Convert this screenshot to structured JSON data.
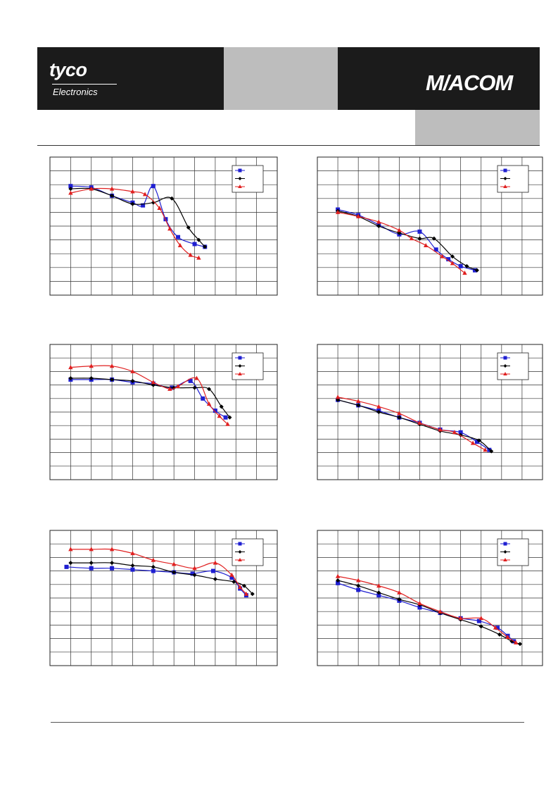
{
  "header": {
    "brand_left": "tyco",
    "brand_left_sub": "Electronics",
    "brand_right": "M/ACOM"
  },
  "colors": {
    "series1": "#1f1fd1",
    "series2": "#000000",
    "series3": "#e02020",
    "banner_dark": "#1b1b1b",
    "banner_grey": "#bdbdbd"
  },
  "chart_data": [
    {
      "type": "line",
      "xlim": [
        0,
        11
      ],
      "ylim": [
        0,
        10
      ],
      "grid": true,
      "legend": "top-right",
      "series": [
        {
          "marker": "square",
          "points": [
            [
              1,
              7.9
            ],
            [
              2,
              7.8
            ],
            [
              3,
              7.2
            ],
            [
              4,
              6.7
            ],
            [
              4.5,
              6.5
            ],
            [
              5,
              7.9
            ],
            [
              5.6,
              5.5
            ],
            [
              6.2,
              4.2
            ],
            [
              7,
              3.7
            ],
            [
              7.5,
              3.5
            ]
          ]
        },
        {
          "marker": "diamond",
          "points": [
            [
              1,
              7.7
            ],
            [
              2,
              7.7
            ],
            [
              3,
              7.2
            ],
            [
              4,
              6.6
            ],
            [
              5,
              6.7
            ],
            [
              5.9,
              7.0
            ],
            [
              6.7,
              4.9
            ],
            [
              7.2,
              4.0
            ],
            [
              7.5,
              3.5
            ]
          ]
        },
        {
          "marker": "triangle",
          "points": [
            [
              1,
              7.4
            ],
            [
              2,
              7.7
            ],
            [
              3,
              7.7
            ],
            [
              4,
              7.5
            ],
            [
              4.6,
              7.3
            ],
            [
              5.3,
              6.3
            ],
            [
              5.8,
              4.8
            ],
            [
              6.3,
              3.6
            ],
            [
              6.8,
              2.9
            ],
            [
              7.2,
              2.7
            ]
          ]
        }
      ]
    },
    {
      "type": "line",
      "xlim": [
        0,
        11
      ],
      "ylim": [
        0,
        10
      ],
      "grid": true,
      "legend": "top-right",
      "series": [
        {
          "marker": "square",
          "points": [
            [
              1,
              6.2
            ],
            [
              2,
              5.8
            ],
            [
              3,
              5.1
            ],
            [
              4,
              4.4
            ],
            [
              5,
              4.6
            ],
            [
              5.8,
              3.3
            ],
            [
              6.4,
              2.6
            ],
            [
              7,
              2.1
            ],
            [
              7.7,
              1.8
            ]
          ]
        },
        {
          "marker": "diamond",
          "points": [
            [
              1,
              6.1
            ],
            [
              2,
              5.7
            ],
            [
              3,
              5.0
            ],
            [
              4,
              4.5
            ],
            [
              5,
              4.1
            ],
            [
              5.7,
              4.1
            ],
            [
              6.6,
              2.8
            ],
            [
              7.3,
              2.1
            ],
            [
              7.8,
              1.8
            ]
          ]
        },
        {
          "marker": "triangle",
          "points": [
            [
              1,
              6.0
            ],
            [
              2,
              5.7
            ],
            [
              3,
              5.3
            ],
            [
              4,
              4.7
            ],
            [
              4.6,
              4.1
            ],
            [
              5.3,
              3.6
            ],
            [
              6.1,
              2.8
            ],
            [
              6.6,
              2.3
            ],
            [
              7.2,
              1.6
            ]
          ]
        }
      ]
    },
    {
      "type": "line",
      "xlim": [
        0,
        11
      ],
      "ylim": [
        0,
        10
      ],
      "grid": true,
      "legend": "top-right",
      "series": [
        {
          "marker": "square",
          "points": [
            [
              1,
              7.4
            ],
            [
              2,
              7.4
            ],
            [
              3,
              7.4
            ],
            [
              4,
              7.2
            ],
            [
              5,
              7.1
            ],
            [
              5.9,
              6.8
            ],
            [
              6.8,
              7.3
            ],
            [
              7.4,
              6.0
            ],
            [
              8,
              5.1
            ],
            [
              8.5,
              4.6
            ]
          ]
        },
        {
          "marker": "diamond",
          "points": [
            [
              1,
              7.5
            ],
            [
              2,
              7.5
            ],
            [
              3,
              7.4
            ],
            [
              4,
              7.3
            ],
            [
              5,
              7.0
            ],
            [
              6,
              6.8
            ],
            [
              7,
              6.8
            ],
            [
              7.7,
              6.7
            ],
            [
              8.3,
              5.4
            ],
            [
              8.7,
              4.6
            ]
          ]
        },
        {
          "marker": "triangle",
          "points": [
            [
              1,
              8.3
            ],
            [
              2,
              8.4
            ],
            [
              3,
              8.4
            ],
            [
              4,
              8.0
            ],
            [
              5,
              7.2
            ],
            [
              5.8,
              6.7
            ],
            [
              6.2,
              6.9
            ],
            [
              7.1,
              7.5
            ],
            [
              7.7,
              5.6
            ],
            [
              8.2,
              4.7
            ],
            [
              8.6,
              4.1
            ]
          ]
        }
      ]
    },
    {
      "type": "line",
      "xlim": [
        0,
        11
      ],
      "ylim": [
        0,
        10
      ],
      "grid": true,
      "legend": "top-right",
      "series": [
        {
          "marker": "square",
          "points": [
            [
              1,
              5.9
            ],
            [
              2,
              5.5
            ],
            [
              3,
              5.1
            ],
            [
              4,
              4.6
            ],
            [
              5,
              4.2
            ],
            [
              6,
              3.7
            ],
            [
              7,
              3.5
            ],
            [
              7.8,
              2.8
            ],
            [
              8.4,
              2.2
            ]
          ]
        },
        {
          "marker": "diamond",
          "points": [
            [
              1,
              5.9
            ],
            [
              2,
              5.5
            ],
            [
              3,
              5.0
            ],
            [
              4,
              4.6
            ],
            [
              5,
              4.1
            ],
            [
              6,
              3.6
            ],
            [
              7,
              3.3
            ],
            [
              7.9,
              2.9
            ],
            [
              8.5,
              2.1
            ]
          ]
        },
        {
          "marker": "triangle",
          "points": [
            [
              1,
              6.1
            ],
            [
              2,
              5.8
            ],
            [
              3,
              5.4
            ],
            [
              4,
              4.9
            ],
            [
              5,
              4.2
            ],
            [
              6,
              3.7
            ],
            [
              6.7,
              3.5
            ],
            [
              7.6,
              2.7
            ],
            [
              8.2,
              2.2
            ]
          ]
        }
      ]
    },
    {
      "type": "line",
      "xlim": [
        0,
        11
      ],
      "ylim": [
        0,
        10
      ],
      "grid": true,
      "legend": "top-right",
      "series": [
        {
          "marker": "square",
          "points": [
            [
              0.8,
              7.3
            ],
            [
              2,
              7.2
            ],
            [
              3,
              7.2
            ],
            [
              4,
              7.1
            ],
            [
              5,
              7.0
            ],
            [
              6,
              6.9
            ],
            [
              6.9,
              6.8
            ],
            [
              7.9,
              7.0
            ],
            [
              8.8,
              6.5
            ],
            [
              9.2,
              5.7
            ],
            [
              9.5,
              5.2
            ]
          ]
        },
        {
          "marker": "diamond",
          "points": [
            [
              1,
              7.6
            ],
            [
              2,
              7.6
            ],
            [
              3,
              7.6
            ],
            [
              4,
              7.4
            ],
            [
              5,
              7.3
            ],
            [
              6,
              6.9
            ],
            [
              7,
              6.7
            ],
            [
              8,
              6.4
            ],
            [
              8.9,
              6.2
            ],
            [
              9.4,
              5.9
            ],
            [
              9.8,
              5.3
            ]
          ]
        },
        {
          "marker": "triangle",
          "points": [
            [
              1,
              8.6
            ],
            [
              2,
              8.6
            ],
            [
              3,
              8.6
            ],
            [
              4,
              8.3
            ],
            [
              5,
              7.8
            ],
            [
              6,
              7.5
            ],
            [
              7,
              7.2
            ],
            [
              8,
              7.6
            ],
            [
              8.8,
              6.7
            ],
            [
              9.2,
              5.8
            ],
            [
              9.5,
              5.3
            ]
          ]
        }
      ]
    },
    {
      "type": "line",
      "xlim": [
        0,
        11
      ],
      "ylim": [
        0,
        10
      ],
      "grid": true,
      "legend": "top-right",
      "series": [
        {
          "marker": "square",
          "points": [
            [
              1,
              6.1
            ],
            [
              2,
              5.6
            ],
            [
              3,
              5.2
            ],
            [
              4,
              4.8
            ],
            [
              5,
              4.3
            ],
            [
              6,
              3.9
            ],
            [
              7,
              3.5
            ],
            [
              7.9,
              3.3
            ],
            [
              8.8,
              2.8
            ],
            [
              9.3,
              2.2
            ],
            [
              9.6,
              1.8
            ]
          ]
        },
        {
          "marker": "diamond",
          "points": [
            [
              1,
              6.3
            ],
            [
              2,
              5.9
            ],
            [
              3,
              5.4
            ],
            [
              4,
              4.9
            ],
            [
              5,
              4.5
            ],
            [
              6,
              3.9
            ],
            [
              7,
              3.4
            ],
            [
              8,
              2.9
            ],
            [
              8.9,
              2.3
            ],
            [
              9.5,
              1.8
            ],
            [
              9.9,
              1.6
            ]
          ]
        },
        {
          "marker": "triangle",
          "points": [
            [
              1,
              6.6
            ],
            [
              2,
              6.3
            ],
            [
              3,
              5.9
            ],
            [
              4,
              5.4
            ],
            [
              5,
              4.6
            ],
            [
              6,
              4.0
            ],
            [
              7,
              3.5
            ],
            [
              8,
              3.5
            ],
            [
              8.7,
              2.8
            ],
            [
              9.3,
              2.1
            ],
            [
              9.7,
              1.7
            ]
          ]
        }
      ]
    }
  ]
}
